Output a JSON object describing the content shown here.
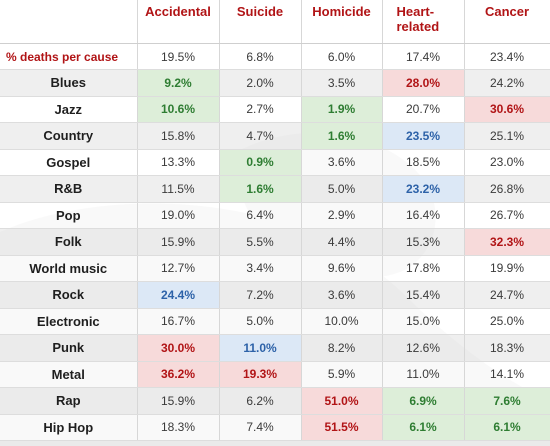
{
  "headers": [
    "",
    "Accidental",
    "Suicide",
    "Homicide",
    "Heart-related",
    "Cancer"
  ],
  "percent_row": {
    "label": "% deaths per cause",
    "values": [
      "19.5%",
      "6.8%",
      "6.0%",
      "17.4%",
      "23.4%"
    ]
  },
  "highlight_colors": {
    "red": "#b11416",
    "green": "#2e7d32",
    "blue": "#2d62a8"
  },
  "rows": [
    {
      "genre": "Blues",
      "values": [
        "9.2%",
        "2.0%",
        "3.5%",
        "28.0%",
        "24.2%"
      ],
      "highlights": [
        "green",
        "",
        "",
        "red",
        ""
      ]
    },
    {
      "genre": "Jazz",
      "values": [
        "10.6%",
        "2.7%",
        "1.9%",
        "20.7%",
        "30.6%"
      ],
      "highlights": [
        "green",
        "",
        "green",
        "",
        "red"
      ]
    },
    {
      "genre": "Country",
      "values": [
        "15.8%",
        "4.7%",
        "1.6%",
        "23.5%",
        "25.1%"
      ],
      "highlights": [
        "",
        "",
        "green",
        "blue",
        ""
      ]
    },
    {
      "genre": "Gospel",
      "values": [
        "13.3%",
        "0.9%",
        "3.6%",
        "18.5%",
        "23.0%"
      ],
      "highlights": [
        "",
        "green",
        "",
        "",
        ""
      ]
    },
    {
      "genre": "R&B",
      "values": [
        "11.5%",
        "1.6%",
        "5.0%",
        "23.2%",
        "26.8%"
      ],
      "highlights": [
        "",
        "green",
        "",
        "blue",
        ""
      ]
    },
    {
      "genre": "Pop",
      "values": [
        "19.0%",
        "6.4%",
        "2.9%",
        "16.4%",
        "26.7%"
      ],
      "highlights": [
        "",
        "",
        "",
        "",
        ""
      ]
    },
    {
      "genre": "Folk",
      "values": [
        "15.9%",
        "5.5%",
        "4.4%",
        "15.3%",
        "32.3%"
      ],
      "highlights": [
        "",
        "",
        "",
        "",
        "red"
      ]
    },
    {
      "genre": "World music",
      "values": [
        "12.7%",
        "3.4%",
        "9.6%",
        "17.8%",
        "19.9%"
      ],
      "highlights": [
        "",
        "",
        "",
        "",
        ""
      ]
    },
    {
      "genre": "Rock",
      "values": [
        "24.4%",
        "7.2%",
        "3.6%",
        "15.4%",
        "24.7%"
      ],
      "highlights": [
        "blue",
        "",
        "",
        "",
        ""
      ]
    },
    {
      "genre": "Electronic",
      "values": [
        "16.7%",
        "5.0%",
        "10.0%",
        "15.0%",
        "25.0%"
      ],
      "highlights": [
        "",
        "",
        "",
        "",
        ""
      ]
    },
    {
      "genre": "Punk",
      "values": [
        "30.0%",
        "11.0%",
        "8.2%",
        "12.6%",
        "18.3%"
      ],
      "highlights": [
        "red",
        "blue",
        "",
        "",
        ""
      ]
    },
    {
      "genre": "Metal",
      "values": [
        "36.2%",
        "19.3%",
        "5.9%",
        "11.0%",
        "14.1%"
      ],
      "highlights": [
        "red",
        "red",
        "",
        "",
        ""
      ]
    },
    {
      "genre": "Rap",
      "values": [
        "15.9%",
        "6.2%",
        "51.0%",
        "6.9%",
        "7.6%"
      ],
      "highlights": [
        "",
        "",
        "red",
        "green",
        "green"
      ]
    },
    {
      "genre": "Hip Hop",
      "values": [
        "18.3%",
        "7.4%",
        "51.5%",
        "6.1%",
        "6.1%"
      ],
      "highlights": [
        "",
        "",
        "red",
        "green",
        "green"
      ]
    }
  ]
}
